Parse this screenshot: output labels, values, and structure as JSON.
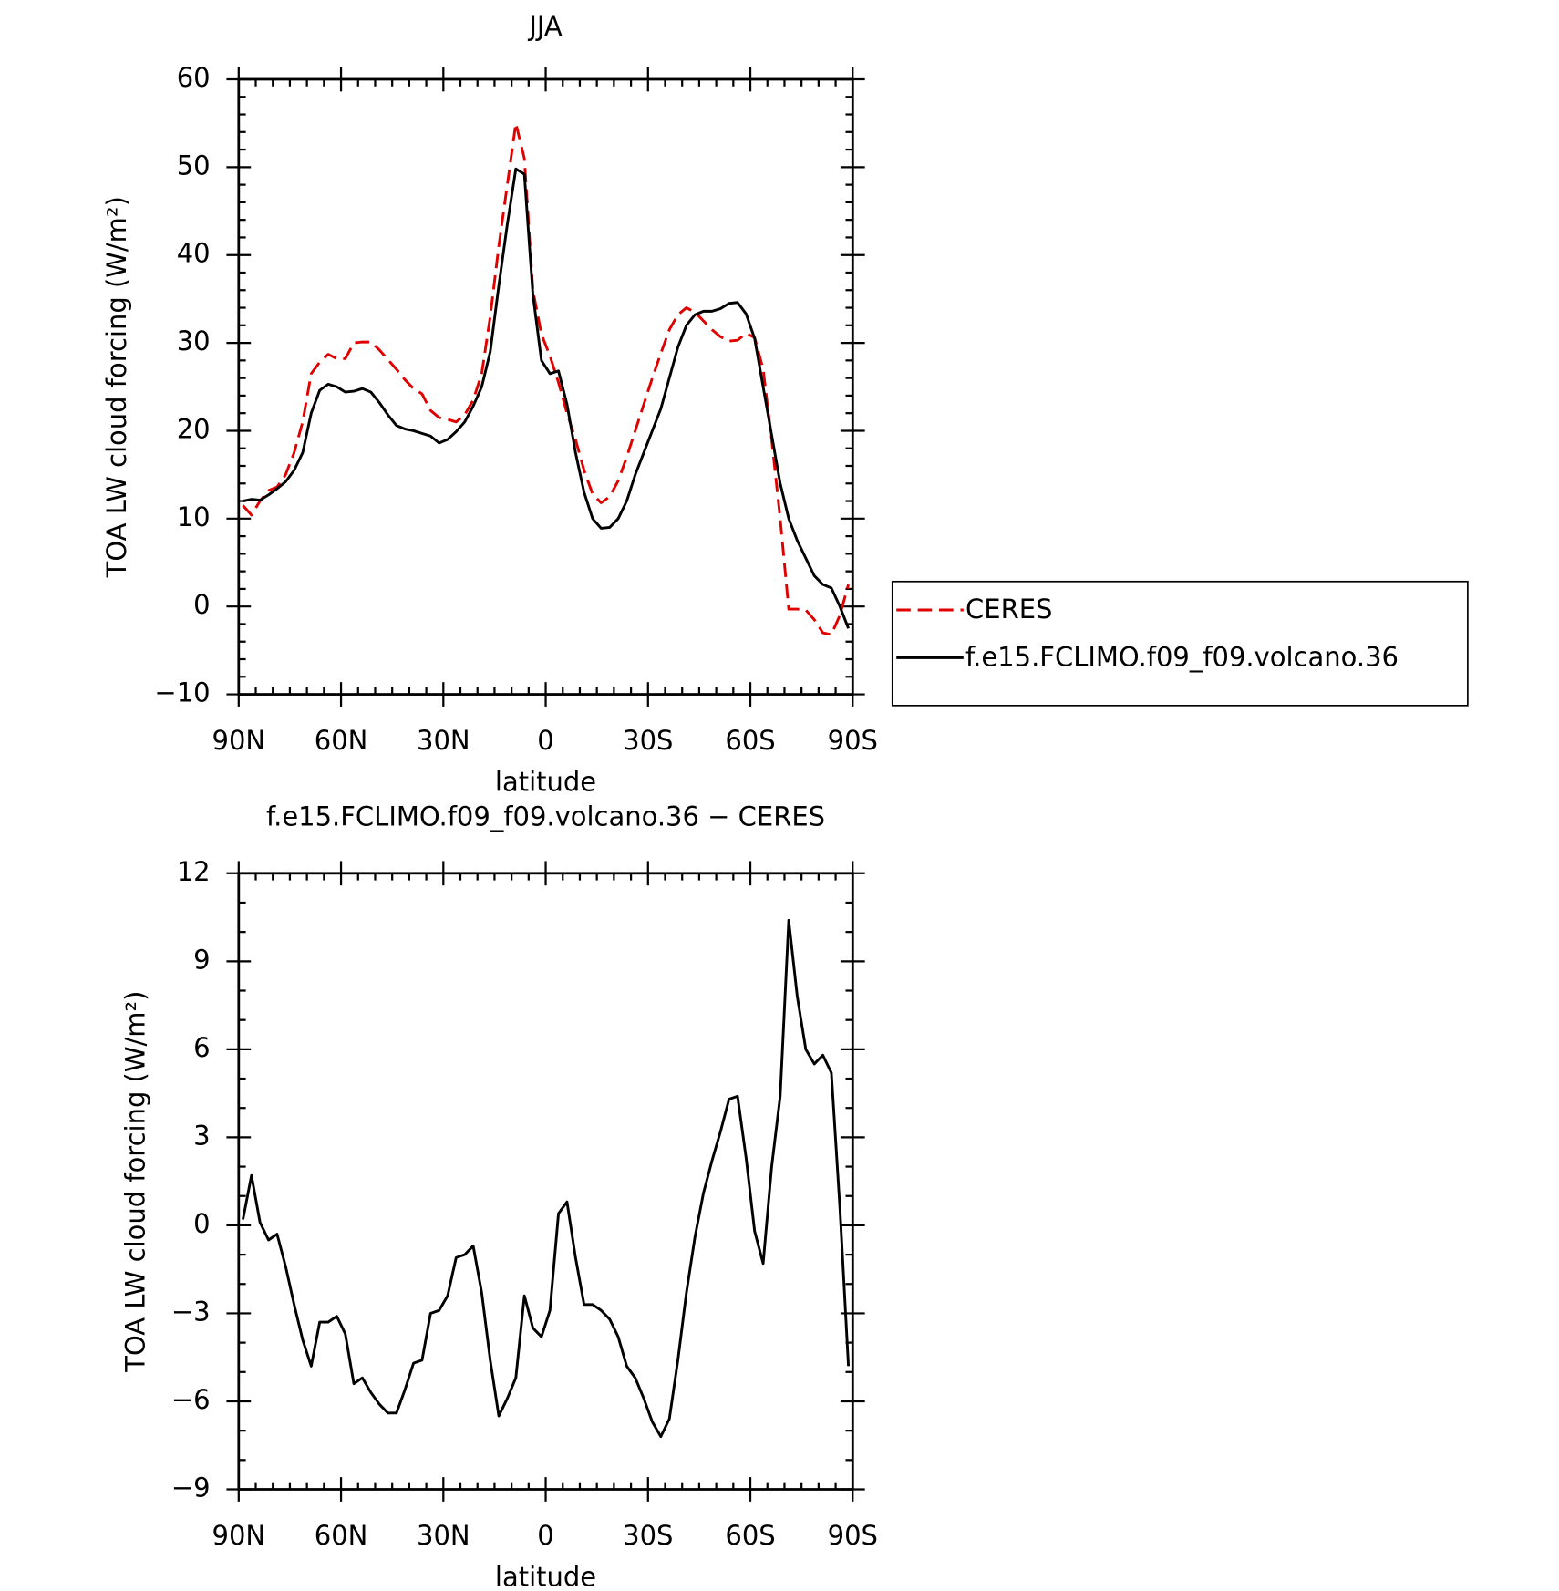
{
  "chart_data": [
    {
      "type": "line",
      "title": "JJA",
      "x_label": "latitude",
      "y_label": "TOA LW cloud forcing (W/m²)",
      "x": [
        88.75,
        86.25,
        83.75,
        81.25,
        78.75,
        76.25,
        73.75,
        71.25,
        68.75,
        66.25,
        63.75,
        61.25,
        58.75,
        56.25,
        53.75,
        51.25,
        48.75,
        46.25,
        43.75,
        41.25,
        38.75,
        36.25,
        33.75,
        31.25,
        28.75,
        26.25,
        23.75,
        21.25,
        18.75,
        16.25,
        13.75,
        11.25,
        8.75,
        6.25,
        3.75,
        1.25,
        -1.25,
        -3.75,
        -6.25,
        -8.75,
        -11.25,
        -13.75,
        -16.25,
        -18.75,
        -21.25,
        -23.75,
        -26.25,
        -28.75,
        -31.25,
        -33.75,
        -36.25,
        -38.75,
        -41.25,
        -43.75,
        -46.25,
        -48.75,
        -51.25,
        -53.75,
        -56.25,
        -58.75,
        -61.25,
        -63.75,
        -66.25,
        -68.75,
        -71.25,
        -73.75,
        -76.25,
        -78.75,
        -81.25,
        -83.75,
        -86.25,
        -88.75
      ],
      "series": [
        {
          "name": "CERES",
          "color": "#e00000",
          "dashed": true,
          "values": [
            11.5,
            10.4,
            12,
            13.2,
            13.6,
            15,
            17.5,
            21,
            26.5,
            27.8,
            28.7,
            28.2,
            28.2,
            30,
            30.1,
            30.1,
            29.2,
            28.1,
            27,
            25.8,
            24.8,
            24.2,
            22.3,
            21.5,
            21.3,
            21,
            21.8,
            23.5,
            26.5,
            33,
            41,
            48,
            55,
            51,
            36,
            31,
            28.5,
            25.5,
            22,
            19,
            15.5,
            12.8,
            11.8,
            12.5,
            14.3,
            17,
            20,
            23,
            26,
            28.8,
            31.5,
            33.2,
            34,
            33.5,
            32.5,
            31.5,
            30.7,
            30.2,
            30.3,
            31.1,
            30.6,
            27,
            19,
            10,
            -0.3,
            -0.3,
            -0.4,
            -1.5,
            -3,
            -3.2,
            -1,
            2.5
          ]
        },
        {
          "name": "f.e15.FCLIMO.f09_f09.volcano.36",
          "color": "#000000",
          "dashed": false,
          "values": [
            12,
            12.2,
            12.1,
            12.7,
            13.4,
            14.2,
            15.5,
            17.5,
            22,
            24.6,
            25.3,
            25,
            24.4,
            24.5,
            24.8,
            24.4,
            23.2,
            21.8,
            20.6,
            20.2,
            20,
            19.7,
            19.4,
            18.6,
            19,
            19.9,
            21,
            22.8,
            25,
            29,
            36.5,
            43.5,
            49.8,
            49.2,
            35.5,
            28,
            26.5,
            26.8,
            23,
            17.5,
            13,
            10,
            8.9,
            9,
            10,
            12,
            15,
            17.5,
            20,
            22.5,
            26,
            29.5,
            32,
            33.2,
            33.6,
            33.6,
            33.9,
            34.5,
            34.6,
            33.3,
            30.5,
            25,
            19.5,
            14,
            10,
            7.5,
            5.5,
            3.5,
            2.5,
            2.1,
            0,
            -2.5
          ]
        }
      ],
      "xlim": [
        90,
        -90
      ],
      "xticks": [
        {
          "value": 90,
          "label": "90N"
        },
        {
          "value": 60,
          "label": "60N"
        },
        {
          "value": 30,
          "label": "30N"
        },
        0,
        {
          "value": -30,
          "label": "30S"
        },
        {
          "value": -60,
          "label": "60S"
        },
        {
          "value": -90,
          "label": "90S"
        }
      ],
      "ylim": [
        -10,
        60
      ],
      "yticks": [
        {
          "value": -10,
          "label": "−10"
        },
        0,
        10,
        20,
        30,
        40,
        50,
        60
      ],
      "legend": "right",
      "grid": false
    },
    {
      "type": "line",
      "title": "f.e15.FCLIMO.f09_f09.volcano.36 − CERES",
      "x_label": "latitude",
      "y_label": "TOA LW cloud forcing (W/m²)",
      "x": [
        88.75,
        86.25,
        83.75,
        81.25,
        78.75,
        76.25,
        73.75,
        71.25,
        68.75,
        66.25,
        63.75,
        61.25,
        58.75,
        56.25,
        53.75,
        51.25,
        48.75,
        46.25,
        43.75,
        41.25,
        38.75,
        36.25,
        33.75,
        31.25,
        28.75,
        26.25,
        23.75,
        21.25,
        18.75,
        16.25,
        13.75,
        11.25,
        8.75,
        6.25,
        3.75,
        1.25,
        -1.25,
        -3.75,
        -6.25,
        -8.75,
        -11.25,
        -13.75,
        -16.25,
        -18.75,
        -21.25,
        -23.75,
        -26.25,
        -28.75,
        -31.25,
        -33.75,
        -36.25,
        -38.75,
        -41.25,
        -43.75,
        -46.25,
        -48.75,
        -51.25,
        -53.75,
        -56.25,
        -58.75,
        -61.25,
        -63.75,
        -66.25,
        -68.75,
        -71.25,
        -73.75,
        -76.25,
        -78.75,
        -81.25,
        -83.75,
        -86.25,
        -88.75
      ],
      "series": [
        {
          "color": "#000000",
          "dashed": false,
          "values": [
            0.2,
            1.7,
            0.1,
            -0.5,
            -0.3,
            -1.4,
            -2.7,
            -3.9,
            -4.8,
            -3.3,
            -3.3,
            -3.1,
            -3.7,
            -5.4,
            -5.2,
            -5.7,
            -6.1,
            -6.4,
            -6.4,
            -5.6,
            -4.7,
            -4.6,
            -3,
            -2.9,
            -2.4,
            -1.1,
            -1,
            -0.7,
            -2.3,
            -4.6,
            -6.5,
            -5.9,
            -5.2,
            -2.4,
            -3.5,
            -3.8,
            -2.9,
            0.4,
            0.8,
            -1.1,
            -2.7,
            -2.7,
            -2.9,
            -3.2,
            -3.8,
            -4.8,
            -5.2,
            -5.9,
            -6.7,
            -7.2,
            -6.6,
            -4.6,
            -2.3,
            -0.4,
            1.1,
            2.2,
            3.2,
            4.3,
            4.4,
            2.3,
            -0.2,
            -1.3,
            2,
            4.4,
            10.4,
            7.8,
            6,
            5.5,
            5.8,
            5.2,
            0.6,
            -4.8
          ]
        }
      ],
      "xlim": [
        90,
        -90
      ],
      "xticks": [
        {
          "value": 90,
          "label": "90N"
        },
        {
          "value": 60,
          "label": "60N"
        },
        {
          "value": 30,
          "label": "30N"
        },
        0,
        {
          "value": -30,
          "label": "30S"
        },
        {
          "value": -60,
          "label": "60S"
        },
        {
          "value": -90,
          "label": "90S"
        }
      ],
      "ylim": [
        -9,
        12
      ],
      "yticks": [
        {
          "value": -9,
          "label": "−9"
        },
        {
          "value": -6,
          "label": "−6"
        },
        {
          "value": -3,
          "label": "−3"
        },
        0,
        3,
        6,
        9,
        12
      ],
      "grid": false
    }
  ]
}
